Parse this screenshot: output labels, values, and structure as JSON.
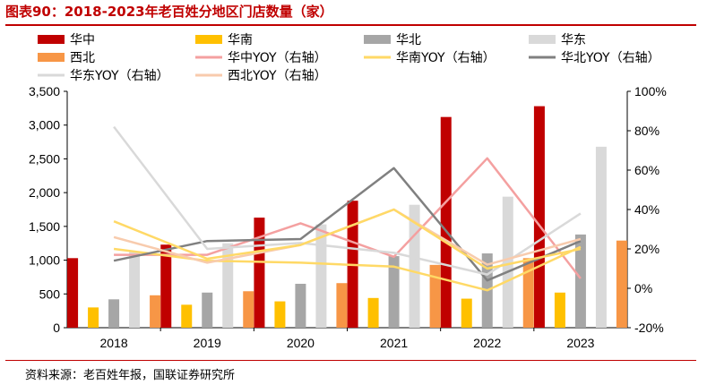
{
  "figure": {
    "title": "图表90：2018-2023年老百姓分地区门店数量（家）",
    "source": "资料来源：老百姓年报，国联证券研究所"
  },
  "chart_data": {
    "type": "bar",
    "title": "图表90：2018-2023年老百姓分地区门店数量（家）",
    "categories": [
      "2018",
      "2019",
      "2020",
      "2021",
      "2022",
      "2023"
    ],
    "ylim": [
      0,
      3500
    ],
    "yticks": [
      "0",
      "500",
      "1,000",
      "1,500",
      "2,000",
      "2,500",
      "3,000",
      "3,500"
    ],
    "y2lim": [
      -20,
      100
    ],
    "y2ticks": [
      "-20%",
      "0%",
      "20%",
      "40%",
      "60%",
      "80%",
      "100%"
    ],
    "grid": false,
    "legend_position": "top",
    "bar_series": [
      {
        "name": "华中",
        "color": "#c00000",
        "values": [
          1030,
          1230,
          1630,
          1880,
          3120,
          3280
        ]
      },
      {
        "name": "华南",
        "color": "#ffc000",
        "values": [
          300,
          340,
          390,
          440,
          430,
          520
        ]
      },
      {
        "name": "华北",
        "color": "#a6a6a6",
        "values": [
          420,
          520,
          650,
          1060,
          1100,
          1380
        ]
      },
      {
        "name": "华东",
        "color": "#d9d9d9",
        "values": [
          1130,
          1250,
          1530,
          1820,
          1940,
          2680
        ]
      },
      {
        "name": "西北",
        "color": "#f79646",
        "values": [
          480,
          540,
          660,
          930,
          1030,
          1290
        ]
      }
    ],
    "line_series": [
      {
        "name": "华中YOY（右轴）",
        "color": "#f4a0a0",
        "values": [
          17,
          17,
          33,
          16,
          66,
          5
        ]
      },
      {
        "name": "华南YOY（右轴）",
        "color": "#ffd966",
        "values": [
          20,
          14,
          13,
          11,
          -1,
          21
        ]
      },
      {
        "name": "华北YOY（右轴）",
        "color": "#808080",
        "values": [
          14,
          24,
          25,
          61,
          4,
          24
        ]
      },
      {
        "name": "华东YOY（右轴）",
        "color": "#d9d9d9",
        "values": [
          82,
          20,
          23,
          18,
          7,
          38
        ]
      },
      {
        "name": "西北YOY（右轴）",
        "color": "#f8cbad",
        "values": [
          26,
          13,
          22,
          40,
          12,
          25
        ]
      }
    ],
    "line_overlay_extra": [
      {
        "color": "#ffd966",
        "values": [
          34,
          15,
          22,
          40,
          10,
          20
        ]
      }
    ]
  }
}
